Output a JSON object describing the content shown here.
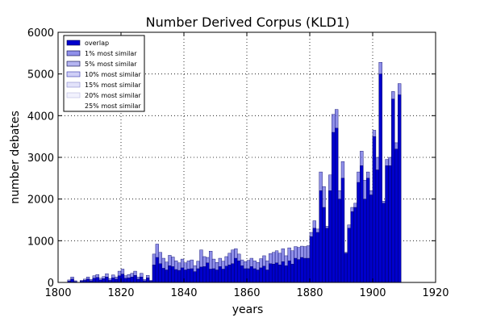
{
  "chart_data": {
    "type": "bar",
    "title": "Number Derived Corpus (KLD1)",
    "xlabel": "years",
    "ylabel": "number debates",
    "xlim": [
      1800,
      1920
    ],
    "ylim": [
      0,
      6000
    ],
    "xticks": [
      1800,
      1820,
      1840,
      1860,
      1880,
      1900,
      1920
    ],
    "yticks": [
      0,
      1000,
      2000,
      3000,
      4000,
      5000,
      6000
    ],
    "grid": true,
    "legend_position": "top-left",
    "x": [
      1803,
      1804,
      1805,
      1806,
      1807,
      1808,
      1809,
      1810,
      1811,
      1812,
      1813,
      1814,
      1815,
      1816,
      1817,
      1818,
      1819,
      1820,
      1821,
      1822,
      1823,
      1824,
      1825,
      1826,
      1827,
      1828,
      1829,
      1830,
      1831,
      1832,
      1833,
      1834,
      1835,
      1836,
      1837,
      1838,
      1839,
      1840,
      1841,
      1842,
      1843,
      1844,
      1845,
      1846,
      1847,
      1848,
      1849,
      1850,
      1851,
      1852,
      1853,
      1854,
      1855,
      1856,
      1857,
      1858,
      1859,
      1860,
      1861,
      1862,
      1863,
      1864,
      1865,
      1866,
      1867,
      1868,
      1869,
      1870,
      1871,
      1872,
      1873,
      1874,
      1875,
      1876,
      1877,
      1878,
      1879,
      1880,
      1881,
      1882,
      1883,
      1884,
      1885,
      1886,
      1887,
      1888,
      1889,
      1890,
      1891,
      1892,
      1893,
      1894,
      1895,
      1896,
      1897,
      1898,
      1899,
      1900,
      1901,
      1902,
      1903,
      1904,
      1905,
      1906,
      1907,
      1908
    ],
    "series": [
      {
        "name": "overlap",
        "color": "#0000cc",
        "values": [
          30,
          80,
          20,
          0,
          30,
          50,
          80,
          40,
          100,
          120,
          60,
          90,
          130,
          50,
          110,
          80,
          160,
          200,
          100,
          110,
          130,
          170,
          80,
          130,
          40,
          110,
          30,
          420,
          600,
          450,
          340,
          300,
          400,
          380,
          310,
          290,
          350,
          300,
          320,
          330,
          260,
          330,
          370,
          380,
          470,
          320,
          330,
          300,
          380,
          320,
          390,
          420,
          450,
          580,
          520,
          400,
          330,
          330,
          380,
          330,
          300,
          350,
          390,
          300,
          450,
          440,
          470,
          420,
          500,
          400,
          520,
          440,
          580,
          550,
          600,
          580,
          580,
          1100,
          1300,
          1200,
          2200,
          1800,
          1300,
          2200,
          3600,
          3700,
          2000,
          2500,
          700,
          1300,
          1700,
          1800,
          2400,
          2800,
          2000,
          2500,
          2100,
          3500,
          2700,
          5000,
          1900,
          2800,
          2800,
          4400,
          3200,
          4500
        ],
        "outline": [
          60,
          130,
          40,
          0,
          50,
          80,
          130,
          70,
          160,
          190,
          100,
          140,
          210,
          90,
          180,
          130,
          270,
          320,
          160,
          190,
          220,
          270,
          130,
          220,
          70,
          170,
          50,
          680,
          920,
          720,
          580,
          490,
          650,
          610,
          520,
          470,
          560,
          470,
          520,
          540,
          400,
          510,
          780,
          620,
          600,
          750,
          560,
          480,
          580,
          510,
          620,
          700,
          780,
          810,
          680,
          540,
          500,
          530,
          580,
          520,
          480,
          570,
          640,
          520,
          690,
          720,
          760,
          700,
          810,
          640,
          830,
          760,
          860,
          840,
          870,
          860,
          880,
          1200,
          1480,
          1280,
          2650,
          2300,
          1350,
          2580,
          4030,
          4150,
          2200,
          2900,
          720,
          1380,
          1800,
          1900,
          2650,
          3150,
          2450,
          2650,
          2200,
          3650,
          3000,
          5280,
          1950,
          2950,
          3000,
          4580,
          3350,
          4770
        ]
      }
    ],
    "legend": [
      "overlap",
      "1% most similar",
      "5% most similar",
      "10% most similar",
      "15% most similar",
      "20% most similar",
      "25% most similar"
    ]
  }
}
